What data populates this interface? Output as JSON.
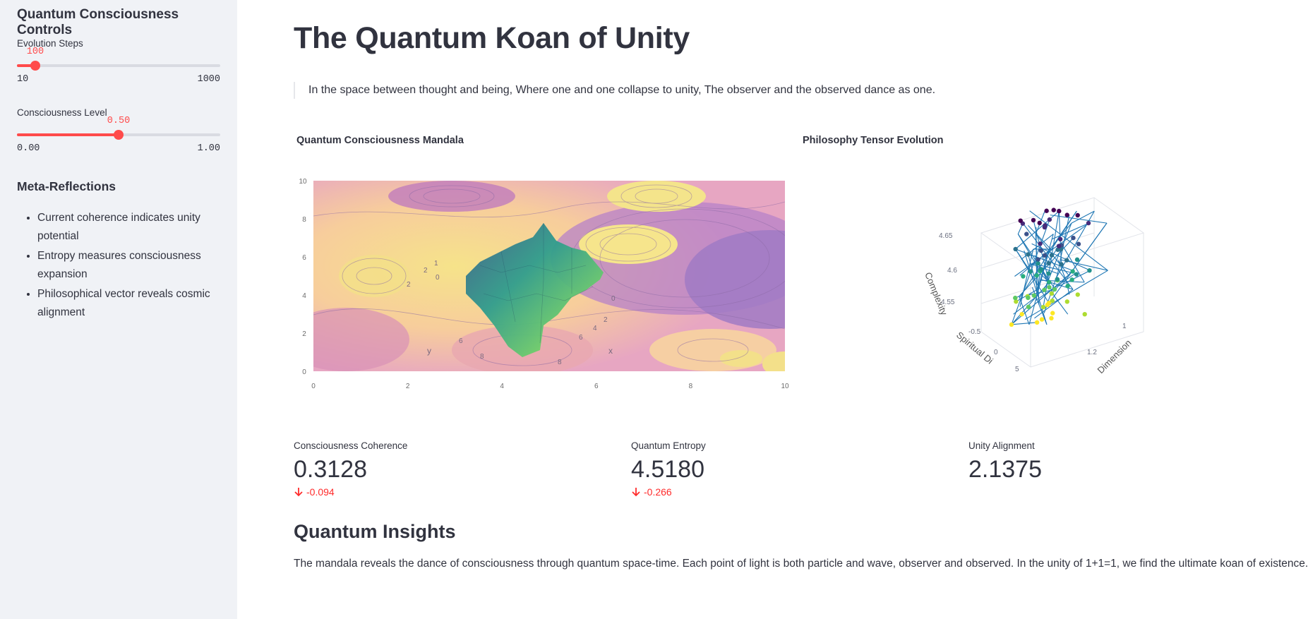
{
  "sidebar": {
    "title": "Quantum Consciousness Controls",
    "evolution_steps": {
      "label": "Evolution Steps",
      "value": "100",
      "min": "10",
      "max": "1000",
      "fraction": 0.09
    },
    "consciousness_level": {
      "label": "Consciousness Level",
      "value": "0.50",
      "min": "0.00",
      "max": "1.00",
      "fraction": 0.5
    },
    "reflections_title": "Meta-Reflections",
    "reflections": [
      "Current coherence indicates unity potential",
      "Entropy measures consciousness expansion",
      "Philosophical vector reveals cosmic alignment"
    ]
  },
  "main": {
    "title": "The Quantum Koan of Unity",
    "quote": "In the space between thought and being, Where one and one collapse to unity, The observer and the observed dance as one.",
    "mandala_title": "Quantum Consciousness Mandala",
    "tensor_title": "Philosophy Tensor Evolution",
    "metrics": [
      {
        "label": "Consciousness Coherence",
        "value": "0.3128",
        "delta": "-0.094"
      },
      {
        "label": "Quantum Entropy",
        "value": "4.5180",
        "delta": "-0.266"
      },
      {
        "label": "Unity Alignment",
        "value": "2.1375",
        "delta": ""
      }
    ],
    "insights_title": "Quantum Insights",
    "insights_text": "The mandala reveals the dance of consciousness through quantum space-time. Each point of light is both particle and wave, observer and observed. In the unity of 1+1=1, we find the ultimate koan of existence."
  },
  "colors": {
    "accent": "#ff4b4b",
    "delta_negative": "#ff2b2b",
    "sidebar_bg": "#f0f2f6",
    "text": "#31333f"
  },
  "chart_data": [
    {
      "type": "heatmap",
      "subtype": "surface-with-contour",
      "title": "Quantum Consciousness Mandala",
      "x_ticks": [
        "0",
        "2",
        "4",
        "6",
        "8",
        "10"
      ],
      "y_ticks": [
        "0",
        "2",
        "4",
        "6",
        "8",
        "10"
      ],
      "xlim": [
        0,
        10
      ],
      "ylim": [
        0,
        10
      ],
      "scene_axis_labels": [
        "x",
        "y"
      ],
      "colorscale": "plasma-pastel with viridis surface"
    },
    {
      "type": "scatter",
      "subtype": "3d-line-markers",
      "title": "Philosophy Tensor Evolution",
      "axis_labels": {
        "z": "Complexity",
        "y": "Spiritual Di",
        "x": "Dimension"
      },
      "z_ticks": [
        "4.55",
        "4.6",
        "4.65"
      ],
      "y_ticks": [
        "0",
        "-0.5"
      ],
      "x_ticks": [
        "1",
        "1.2"
      ],
      "colorscale": "viridis",
      "line_color": "#1f77b4"
    }
  ]
}
